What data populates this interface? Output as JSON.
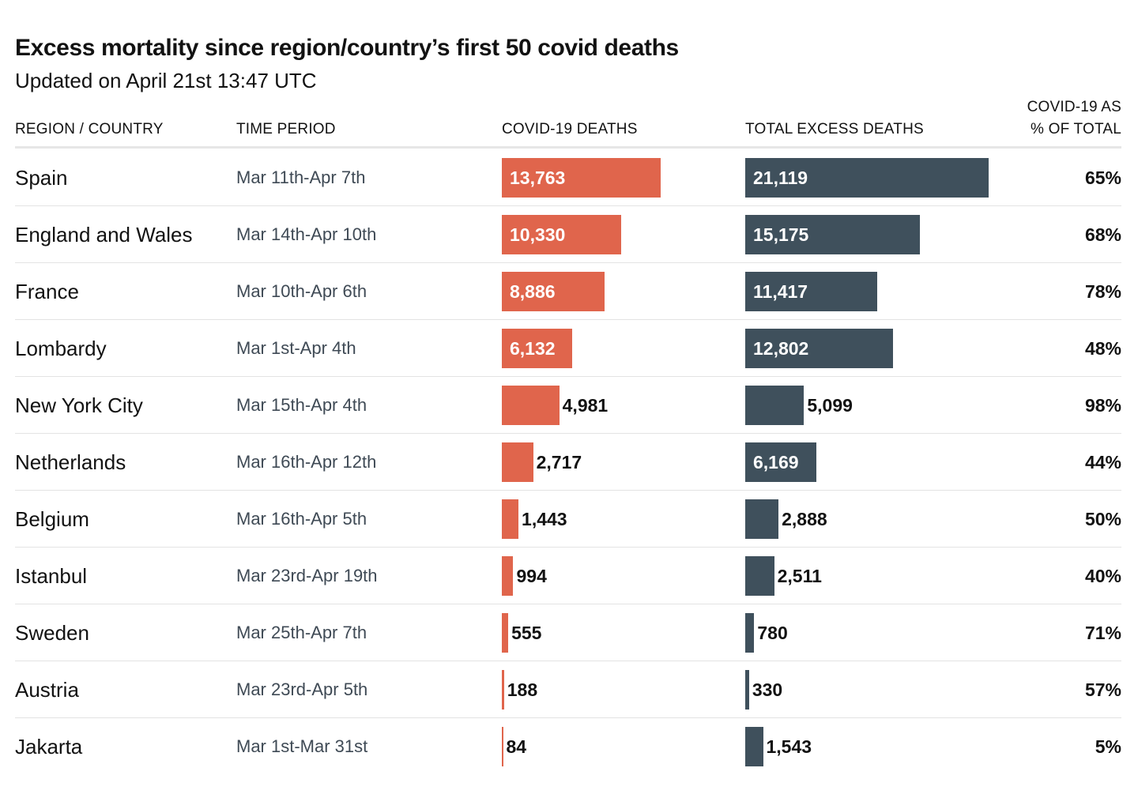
{
  "title": "Excess mortality since region/country’s first 50 covid deaths",
  "subtitle": "Updated on April 21st 13:47 UTC",
  "headers": {
    "region": "REGION / COUNTRY",
    "period": "TIME PERIOD",
    "covid": "COVID-19 DEATHS",
    "excess": "TOTAL EXCESS DEATHS",
    "pct_line1": "COVID-19 AS",
    "pct_line2": "% OF TOTAL"
  },
  "colors": {
    "covid": "#e0654c",
    "excess": "#3f505c"
  },
  "chart_data": {
    "type": "bar",
    "title": "Excess mortality since region/country’s first 50 covid deaths",
    "subtitle": "Updated on April 21st 13:47 UTC",
    "categories": [
      "Spain",
      "England and Wales",
      "France",
      "Lombardy",
      "New York City",
      "Netherlands",
      "Belgium",
      "Istanbul",
      "Sweden",
      "Austria",
      "Jakarta"
    ],
    "time_periods": [
      "Mar 11th-Apr 7th",
      "Mar 14th-Apr 10th",
      "Mar 10th-Apr 6th",
      "Mar 1st-Apr 4th",
      "Mar 15th-Apr 4th",
      "Mar 16th-Apr 12th",
      "Mar 16th-Apr 5th",
      "Mar 23rd-Apr 19th",
      "Mar 25th-Apr 7th",
      "Mar 23rd-Apr 5th",
      "Mar 1st-Mar 31st"
    ],
    "series": [
      {
        "name": "COVID-19 DEATHS",
        "values": [
          13763,
          10330,
          8886,
          6132,
          4981,
          2717,
          1443,
          994,
          555,
          188,
          84
        ],
        "labels": [
          "13,763",
          "10,330",
          "8,886",
          "6,132",
          "4,981",
          "2,717",
          "1,443",
          "994",
          "555",
          "188",
          "84"
        ]
      },
      {
        "name": "TOTAL EXCESS DEATHS",
        "values": [
          21119,
          15175,
          11417,
          12802,
          5099,
          6169,
          2888,
          2511,
          780,
          330,
          1543
        ],
        "labels": [
          "21,119",
          "15,175",
          "11,417",
          "12,802",
          "5,099",
          "6,169",
          "2,888",
          "2,511",
          "780",
          "330",
          "1,543"
        ]
      }
    ],
    "percent_of_total": [
      "65%",
      "68%",
      "78%",
      "48%",
      "98%",
      "44%",
      "50%",
      "40%",
      "71%",
      "57%",
      "5%"
    ]
  }
}
